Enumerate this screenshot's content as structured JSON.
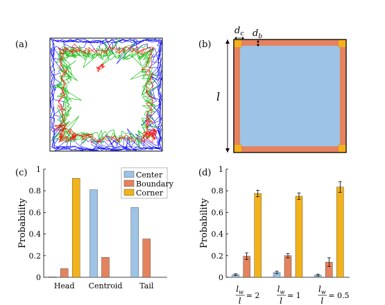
{
  "panels": {
    "a": "(a)",
    "b": "(b)",
    "c": "(c)",
    "d": "(d)"
  },
  "schematic": {
    "label_dc_main": "d",
    "label_dc_sub": "c",
    "label_db_main": "d",
    "label_db_sub": "b",
    "label_l": "l",
    "colors": {
      "center": "#9DC3E6",
      "boundary": "#E4835E",
      "corner": "#F2B21A"
    }
  },
  "chart_data": [
    {
      "id": "c",
      "type": "bar",
      "categories": [
        "Head",
        "Centroid",
        "Tail"
      ],
      "series": [
        {
          "name": "Center",
          "color": "#9DC3E6",
          "values": [
            0.005,
            0.81,
            0.645
          ]
        },
        {
          "name": "Boundary",
          "color": "#E4835E",
          "values": [
            0.08,
            0.185,
            0.355
          ]
        },
        {
          "name": "Corner",
          "color": "#F2B21A",
          "values": [
            0.915,
            0.0,
            0.0
          ]
        }
      ],
      "ylabel": "Probability",
      "ylim": [
        0,
        1
      ],
      "yticks": [
        "0",
        "0.2",
        "0.4",
        "0.6",
        "0.8",
        "1"
      ],
      "legend_position": "top-right"
    },
    {
      "id": "d",
      "type": "bar",
      "categories": [
        "= 2",
        "= 1",
        "= 0.5"
      ],
      "category_prefix": {
        "num": "l",
        "num_sub": "w",
        "den": "l"
      },
      "series": [
        {
          "name": "Center",
          "color": "#9DC3E6",
          "values": [
            0.025,
            0.045,
            0.02
          ],
          "errors": [
            0.008,
            0.012,
            0.008
          ]
        },
        {
          "name": "Boundary",
          "color": "#E4835E",
          "values": [
            0.195,
            0.2,
            0.14
          ],
          "errors": [
            0.03,
            0.02,
            0.04
          ]
        },
        {
          "name": "Corner",
          "color": "#F2B21A",
          "values": [
            0.775,
            0.75,
            0.835
          ],
          "errors": [
            0.03,
            0.03,
            0.05
          ]
        }
      ],
      "ylabel": "Probability",
      "ylim": [
        0,
        1
      ],
      "yticks": [
        "0",
        "0.2",
        "0.4",
        "0.6",
        "0.8",
        "1"
      ]
    }
  ]
}
